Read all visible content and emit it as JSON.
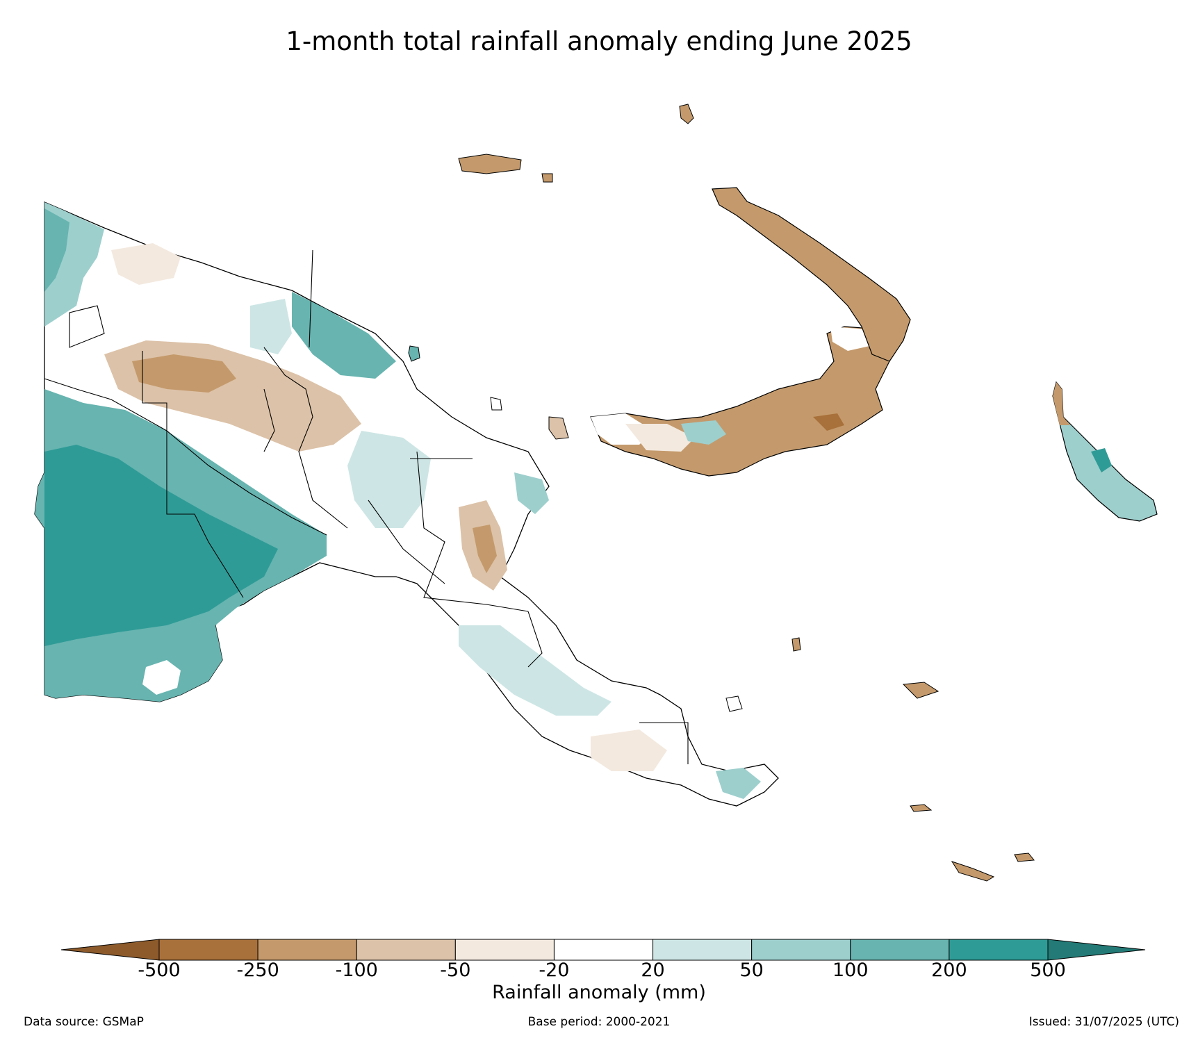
{
  "title": "1-month total rainfall anomaly ending June 2025",
  "colorbar": {
    "label": "Rainfall anomaly (mm)",
    "ticks": [
      "-500",
      "-250",
      "-100",
      "-50",
      "-20",
      "20",
      "50",
      "100",
      "200",
      "500"
    ],
    "colors": [
      "#a8703a",
      "#c49a6c",
      "#dcc2a8",
      "#f3e9df",
      "#ffffff",
      "#cde6e5",
      "#9dcfcd",
      "#67b4b0",
      "#2f9b96"
    ],
    "extend_low_color": "#8c5a2b",
    "extend_high_color": "#237a76"
  },
  "footer": {
    "data_source": "Data source: GSMaP",
    "base_period": "Base period: 2000-2021",
    "issued": "Issued: 31/07/2025 (UTC)"
  }
}
